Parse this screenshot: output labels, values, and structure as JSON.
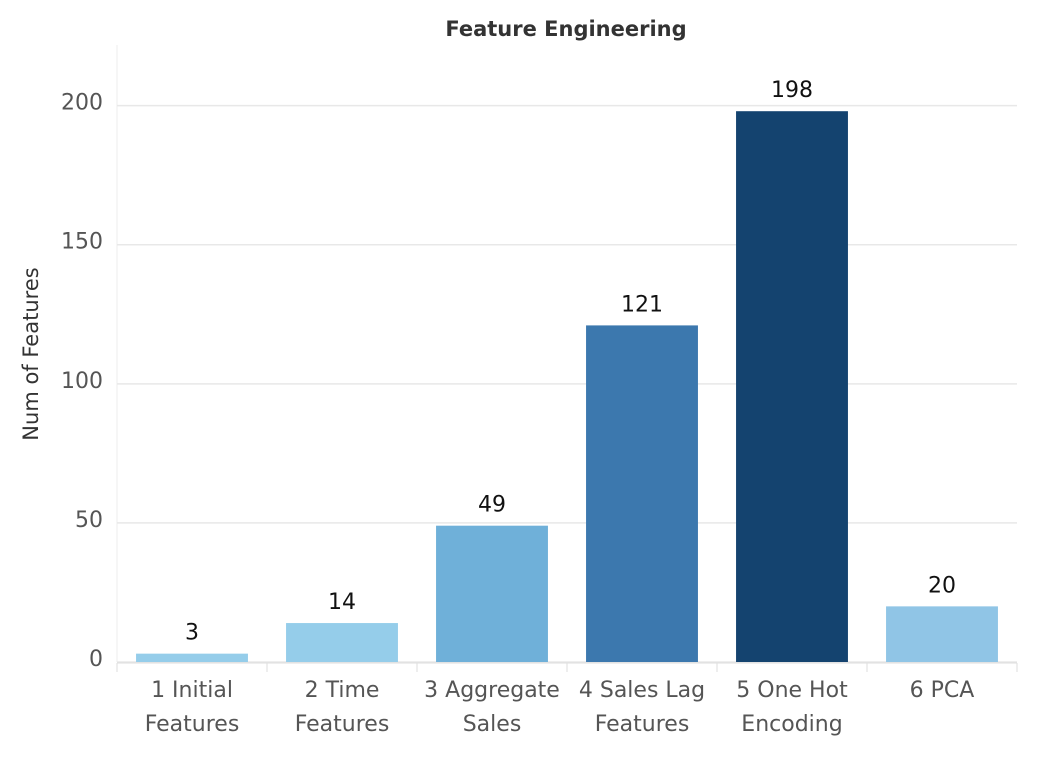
{
  "chart_data": {
    "type": "bar",
    "title": "Feature Engineering",
    "y_label": "Num of Features",
    "categories": [
      "1 Initial Features",
      "2 Time Features",
      "3 Aggregate Sales",
      "4 Sales Lag Features",
      "5 One Hot Encoding",
      "6 PCA"
    ],
    "values": [
      3,
      14,
      49,
      121,
      198,
      20
    ],
    "colors": [
      "#95cdea",
      "#95cdea",
      "#6fb0d9",
      "#3c78ae",
      "#14436f",
      "#90c5e6"
    ],
    "ylim": [
      0,
      220
    ],
    "yticks": [
      0,
      50,
      100,
      150,
      200
    ],
    "grid": true
  }
}
